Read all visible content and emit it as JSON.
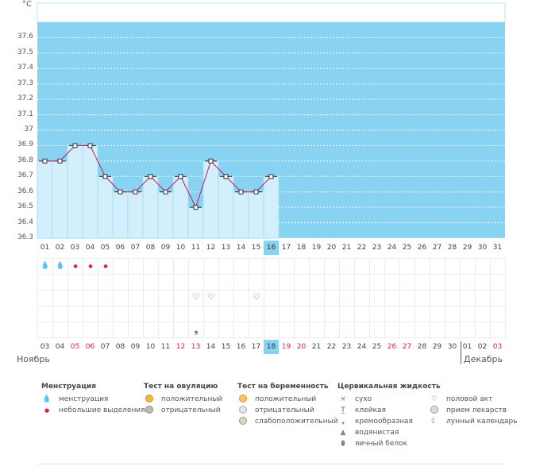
{
  "unit_label": "°C",
  "y_ticks": [
    "37.6",
    "37.5",
    "37.4",
    "37.3",
    "37.2",
    "37.1",
    "37",
    "36.9",
    "36.8",
    "36.7",
    "36.6",
    "36.5",
    "36.4",
    "36.3"
  ],
  "top_days": [
    "01",
    "02",
    "03",
    "04",
    "05",
    "06",
    "07",
    "08",
    "09",
    "10",
    "11",
    "12",
    "13",
    "14",
    "15",
    "16",
    "17",
    "18",
    "19",
    "20",
    "21",
    "22",
    "23",
    "24",
    "25",
    "26",
    "27",
    "28",
    "29",
    "30",
    "31"
  ],
  "bottom_days": [
    "03",
    "04",
    "05",
    "06",
    "07",
    "08",
    "09",
    "10",
    "11",
    "12",
    "13",
    "14",
    "15",
    "16",
    "17",
    "18",
    "19",
    "20",
    "21",
    "22",
    "23",
    "24",
    "25",
    "26",
    "27",
    "28",
    "29",
    "30",
    "01",
    "02",
    "03"
  ],
  "bottom_weekend_idx": [
    2,
    3,
    9,
    10,
    16,
    17,
    23,
    24,
    30
  ],
  "current_idx": 15,
  "month_left": "Ноябрь",
  "month_right": "Декабрь",
  "chart_data": {
    "type": "line",
    "x": [
      "01",
      "02",
      "03",
      "04",
      "05",
      "06",
      "07",
      "08",
      "09",
      "10",
      "11",
      "12",
      "13",
      "14",
      "15",
      "16"
    ],
    "values": [
      36.8,
      36.8,
      36.9,
      36.9,
      36.7,
      36.6,
      36.6,
      36.7,
      36.6,
      36.7,
      36.5,
      36.8,
      36.7,
      36.6,
      36.6,
      36.7
    ],
    "ylim": [
      36.3,
      37.7
    ],
    "ylabel": "°C",
    "grid": true,
    "colors": {
      "line": "#c8185b",
      "area": "#d3effd",
      "background": "#88d2f2",
      "marker_face": "#ffffff",
      "marker_edge": "#333333"
    }
  },
  "symbols": {
    "menstruation_big": [
      0,
      1
    ],
    "menstruation_small": [
      2,
      3,
      4
    ],
    "intercourse": [
      10,
      11,
      14
    ],
    "cervical_creamy": [
      10
    ]
  },
  "legend": {
    "menstruation": {
      "title": "Менструация",
      "items": [
        {
          "icon": "blood-drops-icon",
          "label": "менструация"
        },
        {
          "icon": "blood-drop-icon",
          "label": "небольшие выделения"
        }
      ]
    },
    "ovulation": {
      "title": "Тест на овуляцию",
      "items": [
        {
          "icon": "ovulation-positive-icon",
          "label": "положительный"
        },
        {
          "icon": "ovulation-negative-icon",
          "label": "отрицательный"
        }
      ]
    },
    "pregnancy": {
      "title": "Тест на беременность",
      "items": [
        {
          "icon": "pregnancy-positive-icon",
          "label": "положительный"
        },
        {
          "icon": "pregnancy-negative-icon",
          "label": "отрицательный"
        },
        {
          "icon": "pregnancy-weak-icon",
          "label": "слабоположительный"
        }
      ]
    },
    "cervical": {
      "title": "Цервикальная жидкость",
      "items": [
        {
          "icon": "dry-icon",
          "label": "сухо"
        },
        {
          "icon": "sticky-icon",
          "label": "клейкая"
        },
        {
          "icon": "creamy-icon",
          "label": "кремообразная"
        },
        {
          "icon": "watery-icon",
          "label": "водянистая"
        },
        {
          "icon": "egg-white-icon",
          "label": "яичный белок"
        }
      ]
    },
    "other": {
      "items": [
        {
          "icon": "heart-icon",
          "label": "половой акт"
        },
        {
          "icon": "pill-icon",
          "label": "прием лекарств"
        },
        {
          "icon": "moon-icon",
          "label": "лунный календарь"
        }
      ]
    }
  }
}
